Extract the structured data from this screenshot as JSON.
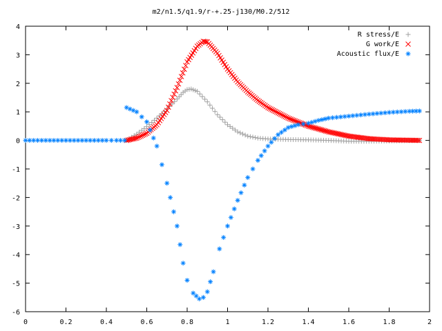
{
  "chart_data": {
    "type": "scatter",
    "title": "m2/n1.5/q1.9/r-+.25-j130/M0.2/512",
    "xlabel": "",
    "ylabel": "",
    "xlim": [
      0,
      2
    ],
    "ylim": [
      -6,
      4
    ],
    "x_ticks": [
      "0",
      "0.2",
      "0.4",
      "0.6",
      "0.8",
      "1",
      "1.2",
      "1.4",
      "1.6",
      "1.8",
      "2"
    ],
    "y_ticks": [
      "4",
      "3",
      "2",
      "1",
      "0",
      "-1",
      "-2",
      "-3",
      "-4",
      "-5",
      "-6"
    ],
    "grid": false,
    "legend_position": "top-right",
    "x_range_shown": [
      0,
      1.95
    ],
    "series": [
      {
        "name": "R stress/E",
        "marker": "plus",
        "color": "#a0a0a0",
        "x": [
          0.5,
          0.55,
          0.6,
          0.65,
          0.7,
          0.75,
          0.78,
          0.8,
          0.82,
          0.85,
          0.9,
          0.95,
          1.0,
          1.05,
          1.1,
          1.15,
          1.2,
          1.3,
          1.4,
          1.5,
          1.6,
          1.7,
          1.8,
          1.95
        ],
        "y": [
          0.0,
          0.22,
          0.48,
          0.78,
          1.1,
          1.45,
          1.68,
          1.78,
          1.8,
          1.72,
          1.35,
          0.9,
          0.55,
          0.3,
          0.15,
          0.08,
          0.05,
          0.03,
          0.02,
          0.0,
          -0.03,
          -0.03,
          -0.02,
          0.0
        ]
      },
      {
        "name": "G work/E",
        "marker": "cross",
        "color": "#ff0000",
        "x": [
          0.5,
          0.55,
          0.6,
          0.65,
          0.7,
          0.75,
          0.8,
          0.85,
          0.88,
          0.9,
          0.95,
          1.0,
          1.05,
          1.1,
          1.15,
          1.2,
          1.3,
          1.4,
          1.5,
          1.6,
          1.7,
          1.8,
          1.95
        ],
        "y": [
          0.0,
          0.08,
          0.25,
          0.55,
          1.05,
          1.85,
          2.75,
          3.3,
          3.47,
          3.45,
          3.05,
          2.5,
          2.05,
          1.7,
          1.4,
          1.15,
          0.78,
          0.5,
          0.3,
          0.15,
          0.06,
          0.02,
          0.0
        ]
      },
      {
        "name": "Acoustic flux/E",
        "marker": "star",
        "color": "#0080ff",
        "x": [
          0.0,
          0.1,
          0.2,
          0.3,
          0.4,
          0.45,
          0.49,
          0.5,
          0.55,
          0.6,
          0.65,
          0.7,
          0.75,
          0.78,
          0.8,
          0.83,
          0.86,
          0.88,
          0.9,
          0.93,
          0.96,
          1.0,
          1.05,
          1.1,
          1.15,
          1.2,
          1.25,
          1.3,
          1.35,
          1.4,
          1.45,
          1.5,
          1.6,
          1.7,
          1.8,
          1.9,
          1.95
        ],
        "y": [
          0.0,
          0.0,
          0.0,
          0.0,
          0.0,
          0.0,
          0.0,
          1.15,
          1.0,
          0.65,
          -0.2,
          -1.5,
          -3.0,
          -4.3,
          -4.9,
          -5.35,
          -5.55,
          -5.5,
          -5.3,
          -4.6,
          -3.8,
          -3.0,
          -2.1,
          -1.3,
          -0.7,
          -0.2,
          0.2,
          0.45,
          0.55,
          0.6,
          0.7,
          0.78,
          0.85,
          0.92,
          0.98,
          1.02,
          1.03
        ]
      }
    ]
  }
}
